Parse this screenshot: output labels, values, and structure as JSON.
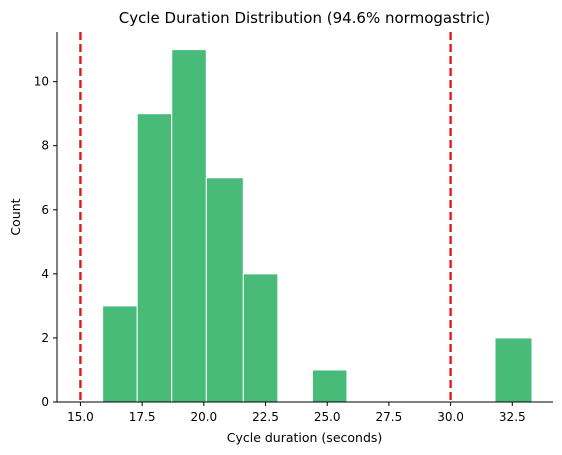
{
  "chart_data": {
    "type": "bar",
    "title": "Cycle Duration Distribution (94.6% normogastric)",
    "xlabel": "Cycle duration (seconds)",
    "ylabel": "Count",
    "xlim": [
      14.05,
      34.15
    ],
    "ylim": [
      0,
      11.55
    ],
    "x_ticks": [
      15.0,
      17.5,
      20.0,
      22.5,
      25.0,
      27.5,
      30.0,
      32.5
    ],
    "x_tick_labels": [
      "15.0",
      "17.5",
      "20.0",
      "22.5",
      "25.0",
      "27.5",
      "30.0",
      "32.5"
    ],
    "y_ticks": [
      0,
      2,
      4,
      6,
      8,
      10
    ],
    "y_tick_labels": [
      "0",
      "2",
      "4",
      "6",
      "8",
      "10"
    ],
    "bins": [
      {
        "start": 15.9,
        "end": 17.3,
        "count": 3
      },
      {
        "start": 17.3,
        "end": 18.7,
        "count": 9
      },
      {
        "start": 18.7,
        "end": 20.1,
        "count": 11
      },
      {
        "start": 20.1,
        "end": 21.6,
        "count": 7
      },
      {
        "start": 21.6,
        "end": 23.0,
        "count": 4
      },
      {
        "start": 24.4,
        "end": 25.8,
        "count": 1
      },
      {
        "start": 31.8,
        "end": 33.3,
        "count": 2
      }
    ],
    "bar_color": "#48bb78",
    "reference_lines": [
      {
        "x": 15.0,
        "color": "#e31a1c",
        "style": "dashed"
      },
      {
        "x": 30.0,
        "color": "#e31a1c",
        "style": "dashed"
      }
    ],
    "grid": false
  }
}
